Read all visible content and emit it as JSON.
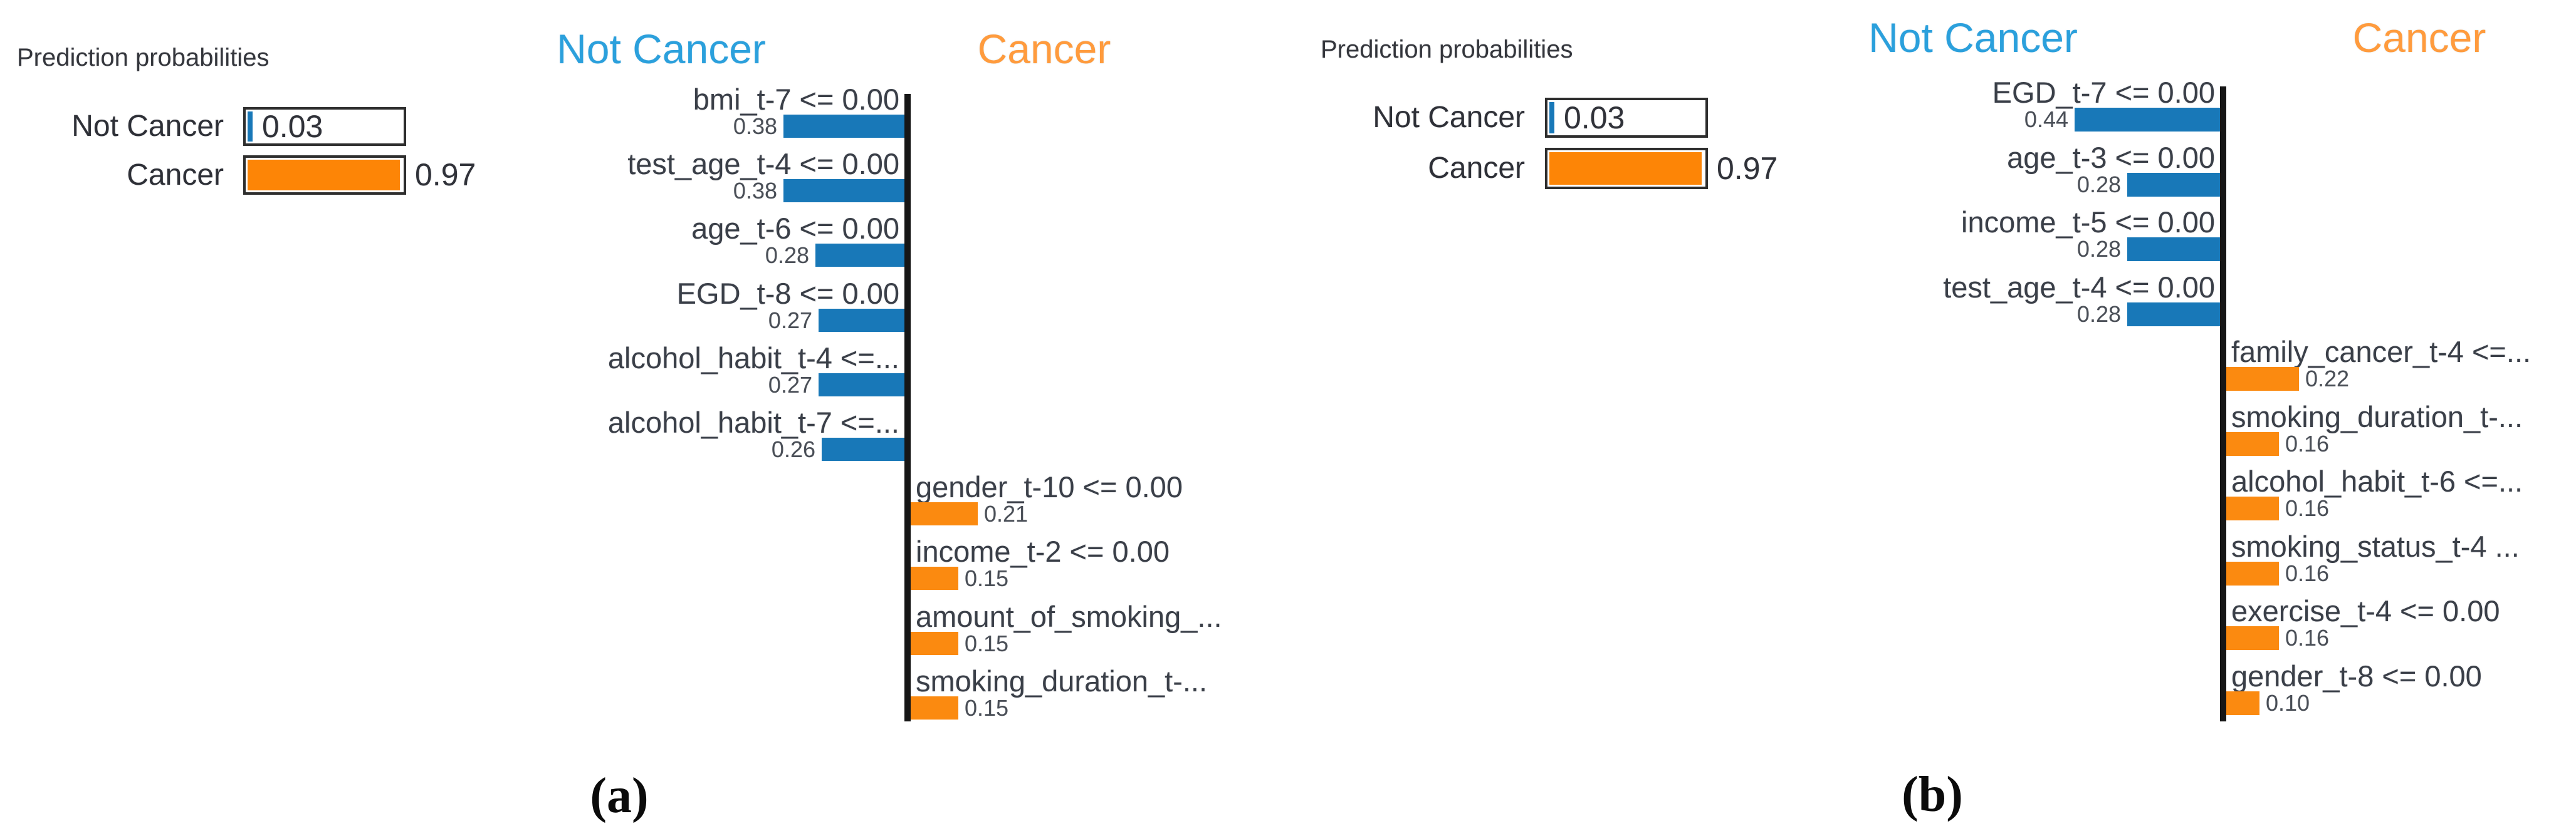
{
  "figure_type": "LIME explanation, two panels",
  "colors": {
    "not_cancer_bar_blue": "#1878b8",
    "cancer_bar_orange": "#fb8a10",
    "header_blue": "#2ba0dc",
    "header_orange": "#ff9b3d",
    "prediction_fill_orange": "#fd8506",
    "prediction_fill_blue": "#1878b8",
    "axis_black": "#161616"
  },
  "panels": [
    {
      "caption": "(a)",
      "prediction": {
        "title": "Prediction probabilities",
        "classes": [
          {
            "label": "Not Cancer",
            "prob": 0.03,
            "prob_label": "0.03",
            "color": "blue",
            "value_placement": "inside"
          },
          {
            "label": "Cancer",
            "prob": 0.97,
            "prob_label": "0.97",
            "color": "orange",
            "value_placement": "outside"
          }
        ]
      },
      "explanation": {
        "headers": [
          {
            "label": "Not Cancer",
            "color": "blue"
          },
          {
            "label": "Cancer",
            "color": "orange"
          }
        ],
        "features": [
          {
            "label": "bmi_t-7 <= 0.00",
            "weight": 0.38,
            "weight_label": "0.38",
            "side": "not_cancer"
          },
          {
            "label": "test_age_t-4 <= 0.00",
            "weight": 0.38,
            "weight_label": "0.38",
            "side": "not_cancer"
          },
          {
            "label": "age_t-6 <= 0.00",
            "weight": 0.28,
            "weight_label": "0.28",
            "side": "not_cancer"
          },
          {
            "label": "EGD_t-8 <= 0.00",
            "weight": 0.27,
            "weight_label": "0.27",
            "side": "not_cancer"
          },
          {
            "label": "alcohol_habit_t-4 <=...",
            "weight": 0.27,
            "weight_label": "0.27",
            "side": "not_cancer"
          },
          {
            "label": "alcohol_habit_t-7 <=...",
            "weight": 0.26,
            "weight_label": "0.26",
            "side": "not_cancer"
          },
          {
            "label": "gender_t-10 <= 0.00",
            "weight": 0.21,
            "weight_label": "0.21",
            "side": "cancer"
          },
          {
            "label": "income_t-2 <= 0.00",
            "weight": 0.15,
            "weight_label": "0.15",
            "side": "cancer"
          },
          {
            "label": "amount_of_smoking_...",
            "weight": 0.15,
            "weight_label": "0.15",
            "side": "cancer"
          },
          {
            "label": "smoking_duration_t-...",
            "weight": 0.15,
            "weight_label": "0.15",
            "side": "cancer"
          }
        ]
      }
    },
    {
      "caption": "(b)",
      "prediction": {
        "title": "Prediction probabilities",
        "classes": [
          {
            "label": "Not Cancer",
            "prob": 0.03,
            "prob_label": "0.03",
            "color": "blue",
            "value_placement": "inside"
          },
          {
            "label": "Cancer",
            "prob": 0.97,
            "prob_label": "0.97",
            "color": "orange",
            "value_placement": "outside"
          }
        ]
      },
      "explanation": {
        "headers": [
          {
            "label": "Not Cancer",
            "color": "blue"
          },
          {
            "label": "Cancer",
            "color": "orange"
          }
        ],
        "features": [
          {
            "label": "EGD_t-7 <= 0.00",
            "weight": 0.44,
            "weight_label": "0.44",
            "side": "not_cancer"
          },
          {
            "label": "age_t-3 <= 0.00",
            "weight": 0.28,
            "weight_label": "0.28",
            "side": "not_cancer"
          },
          {
            "label": "income_t-5 <= 0.00",
            "weight": 0.28,
            "weight_label": "0.28",
            "side": "not_cancer"
          },
          {
            "label": "test_age_t-4 <= 0.00",
            "weight": 0.28,
            "weight_label": "0.28",
            "side": "not_cancer"
          },
          {
            "label": "family_cancer_t-4 <=...",
            "weight": 0.22,
            "weight_label": "0.22",
            "side": "cancer"
          },
          {
            "label": "smoking_duration_t-...",
            "weight": 0.16,
            "weight_label": "0.16",
            "side": "cancer"
          },
          {
            "label": "alcohol_habit_t-6 <=...",
            "weight": 0.16,
            "weight_label": "0.16",
            "side": "cancer"
          },
          {
            "label": "smoking_status_t-4 ...",
            "weight": 0.16,
            "weight_label": "0.16",
            "side": "cancer"
          },
          {
            "label": "exercise_t-4 <= 0.00",
            "weight": 0.16,
            "weight_label": "0.16",
            "side": "cancer"
          },
          {
            "label": "gender_t-8 <= 0.00",
            "weight": 0.1,
            "weight_label": "0.10",
            "side": "cancer"
          }
        ]
      }
    }
  ],
  "chart_data": [
    {
      "type": "bar",
      "orientation": "horizontal",
      "title": "Prediction probabilities",
      "prediction_probabilities": {
        "Not Cancer": 0.03,
        "Cancer": 0.97
      },
      "legend_headers": [
        "Not Cancer",
        "Cancer"
      ],
      "series": [
        {
          "name": "Not Cancer",
          "color": "#1878b8",
          "data": [
            [
              "bmi_t-7 <= 0.00",
              0.38
            ],
            [
              "test_age_t-4 <= 0.00",
              0.38
            ],
            [
              "age_t-6 <= 0.00",
              0.28
            ],
            [
              "EGD_t-8 <= 0.00",
              0.27
            ],
            [
              "alcohol_habit_t-4 <=...",
              0.27
            ],
            [
              "alcohol_habit_t-7 <=...",
              0.26
            ]
          ]
        },
        {
          "name": "Cancer",
          "color": "#fb8a10",
          "data": [
            [
              "gender_t-10 <= 0.00",
              0.21
            ],
            [
              "income_t-2 <= 0.00",
              0.15
            ],
            [
              "amount_of_smoking_...",
              0.15
            ],
            [
              "smoking_duration_t-...",
              0.15
            ]
          ]
        }
      ],
      "xlim": [
        0,
        0.5
      ],
      "grid": false,
      "caption": "(a)"
    },
    {
      "type": "bar",
      "orientation": "horizontal",
      "title": "Prediction probabilities",
      "prediction_probabilities": {
        "Not Cancer": 0.03,
        "Cancer": 0.97
      },
      "legend_headers": [
        "Not Cancer",
        "Cancer"
      ],
      "series": [
        {
          "name": "Not Cancer",
          "color": "#1878b8",
          "data": [
            [
              "EGD_t-7 <= 0.00",
              0.44
            ],
            [
              "age_t-3 <= 0.00",
              0.28
            ],
            [
              "income_t-5 <= 0.00",
              0.28
            ],
            [
              "test_age_t-4 <= 0.00",
              0.28
            ]
          ]
        },
        {
          "name": "Cancer",
          "color": "#fb8a10",
          "data": [
            [
              "family_cancer_t-4 <=...",
              0.22
            ],
            [
              "smoking_duration_t-...",
              0.16
            ],
            [
              "alcohol_habit_t-6 <=...",
              0.16
            ],
            [
              "smoking_status_t-4 ...",
              0.16
            ],
            [
              "exercise_t-4 <= 0.00",
              0.16
            ],
            [
              "gender_t-8 <= 0.00",
              0.1
            ]
          ]
        }
      ],
      "xlim": [
        0,
        0.5
      ],
      "grid": false,
      "caption": "(b)"
    }
  ]
}
